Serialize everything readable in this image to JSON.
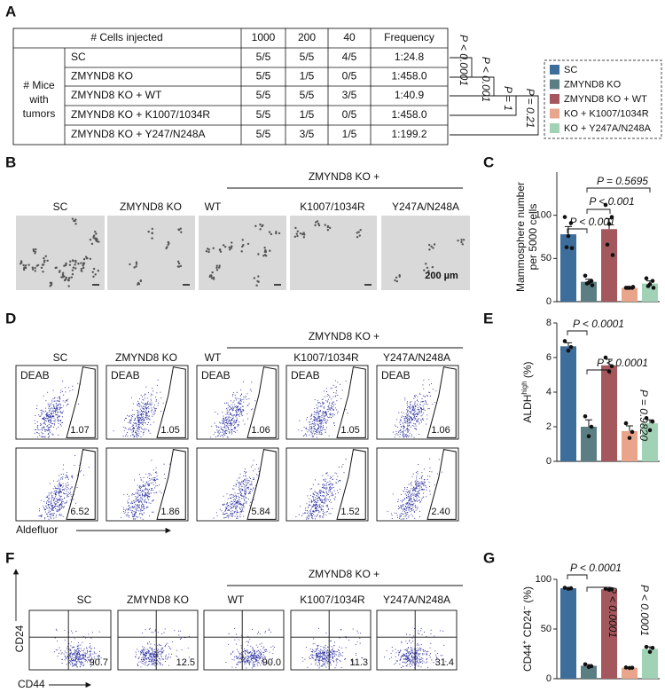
{
  "panel_labels": [
    "A",
    "B",
    "C",
    "D",
    "E",
    "F",
    "G"
  ],
  "table": {
    "header": [
      "# Cells injected",
      "1000",
      "200",
      "40",
      "Frequency"
    ],
    "row_group": [
      "# Mice",
      "with",
      "tumors"
    ],
    "rows": [
      [
        "SC",
        "5/5",
        "5/5",
        "4/5",
        "1:24.8"
      ],
      [
        "ZMYND8 KO",
        "5/5",
        "1/5",
        "0/5",
        "1:458.0"
      ],
      [
        "ZMYND8 KO + WT",
        "5/5",
        "5/5",
        "3/5",
        "1:40.9"
      ],
      [
        "ZMYND8 KO + K1007/1034R",
        "5/5",
        "1/5",
        "0/5",
        "1:458.0"
      ],
      [
        "ZMYND8 KO + Y247/N248A",
        "5/5",
        "3/5",
        "1/5",
        "1:199.2"
      ]
    ],
    "stats": [
      "P < 0.0001",
      "P < 0.001",
      "P = 1",
      "P = 0.21"
    ]
  },
  "legend": [
    {
      "name": "SC",
      "color": "#3d6d9b"
    },
    {
      "name": "ZMYND8 KO",
      "color": "#5b7e84"
    },
    {
      "name": "ZMYND8 KO + WT",
      "color": "#a4585d"
    },
    {
      "name": "KO + K1007/1034R",
      "color": "#e8a58c"
    },
    {
      "name": "KO + Y247A/N248A",
      "color": "#a2d2b6"
    }
  ],
  "panel_b": {
    "header": "ZMYND8 KO +",
    "labels": [
      "SC",
      "ZMYND8 KO",
      "WT",
      "K1007/1034R",
      "Y247A/N248A"
    ],
    "scale_bar": "200 µm"
  },
  "panel_d": {
    "header": "ZMYND8 KO +",
    "labels": [
      "SC",
      "ZMYND8 KO",
      "WT",
      "K1007/1034R",
      "Y247A/N248A"
    ],
    "control_label": "DEAB",
    "gates": [
      [
        "1.07",
        "1.05",
        "1.06",
        "1.05",
        "1.06"
      ],
      [
        "6.52",
        "1.86",
        "5.84",
        "1.52",
        "2.40"
      ]
    ],
    "x_label": "Aldefluor"
  },
  "panel_f": {
    "header": "ZMYND8 KO +",
    "labels": [
      "SC",
      "ZMYND8 KO",
      "WT",
      "K1007/1034R",
      "Y247A/N248A"
    ],
    "quadrants": [
      "90.7",
      "12.5",
      "90.0",
      "11.3",
      "31.4"
    ],
    "y_label": "CD24",
    "x_label": "CD44"
  },
  "chart_data": [
    {
      "type": "bar",
      "y_label": [
        [
          {
            "text": "Mammosphere number"
          }
        ],
        [
          {
            "text": "per 5000 cells"
          }
        ]
      ],
      "ylim": [
        0,
        150
      ],
      "yticks": [
        0,
        50,
        100
      ],
      "values": [
        78,
        23,
        84,
        16,
        21
      ],
      "errors": [
        9,
        3,
        12,
        1,
        3
      ],
      "points": [
        [
          98,
          91,
          76,
          63,
          62
        ],
        [
          30,
          24,
          22,
          21,
          19
        ],
        [
          112,
          98,
          90,
          66,
          54
        ],
        [
          16,
          16,
          16,
          16,
          17
        ],
        [
          27,
          24,
          20,
          18,
          16
        ]
      ],
      "comparisons": [
        "P < 0.001",
        "P < 0.001",
        "P = 0.5695"
      ]
    },
    {
      "type": "bar",
      "y_label": [
        [
          {
            "text": "ALDH"
          },
          {
            "text": "high",
            "sup": true
          },
          {
            "text": " (%)"
          }
        ]
      ],
      "ylim": [
        0,
        8
      ],
      "yticks": [
        0,
        2,
        4,
        6,
        8
      ],
      "values": [
        6.65,
        2.0,
        5.55,
        1.75,
        2.2
      ],
      "errors": [
        0.2,
        0.4,
        0.35,
        0.3,
        0.2
      ],
      "points": [
        [
          6.95,
          6.6,
          6.4
        ],
        [
          2.6,
          2.0,
          1.45
        ],
        [
          6.0,
          5.5,
          5.2
        ],
        [
          2.2,
          1.7,
          1.35
        ],
        [
          2.5,
          2.3,
          1.8
        ]
      ],
      "comparisons": [
        "P < 0.0001",
        "P < 0.0001",
        "P = 0.9820"
      ]
    },
    {
      "type": "bar",
      "y_label": [
        [
          {
            "text": "CD44"
          },
          {
            "text": "+",
            "sup": true
          },
          {
            "text": " CD24"
          },
          {
            "text": "−",
            "sup": true
          },
          {
            "text": " (%)"
          }
        ]
      ],
      "ylim": [
        0,
        100
      ],
      "yticks": [
        0,
        50,
        100
      ],
      "values": [
        91,
        13,
        90,
        11,
        30
      ],
      "errors": [
        0.6,
        1.2,
        0.5,
        0.4,
        2
      ],
      "points": [
        [
          91.5,
          91,
          90.5
        ],
        [
          14.5,
          12.5,
          11.8
        ],
        [
          90.5,
          90,
          89.5
        ],
        [
          11.3,
          11,
          10.8
        ],
        [
          32,
          31,
          27
        ]
      ],
      "comparisons": [
        "P < 0.0001",
        "P < 0.0001",
        "P < 0.0001"
      ]
    }
  ]
}
